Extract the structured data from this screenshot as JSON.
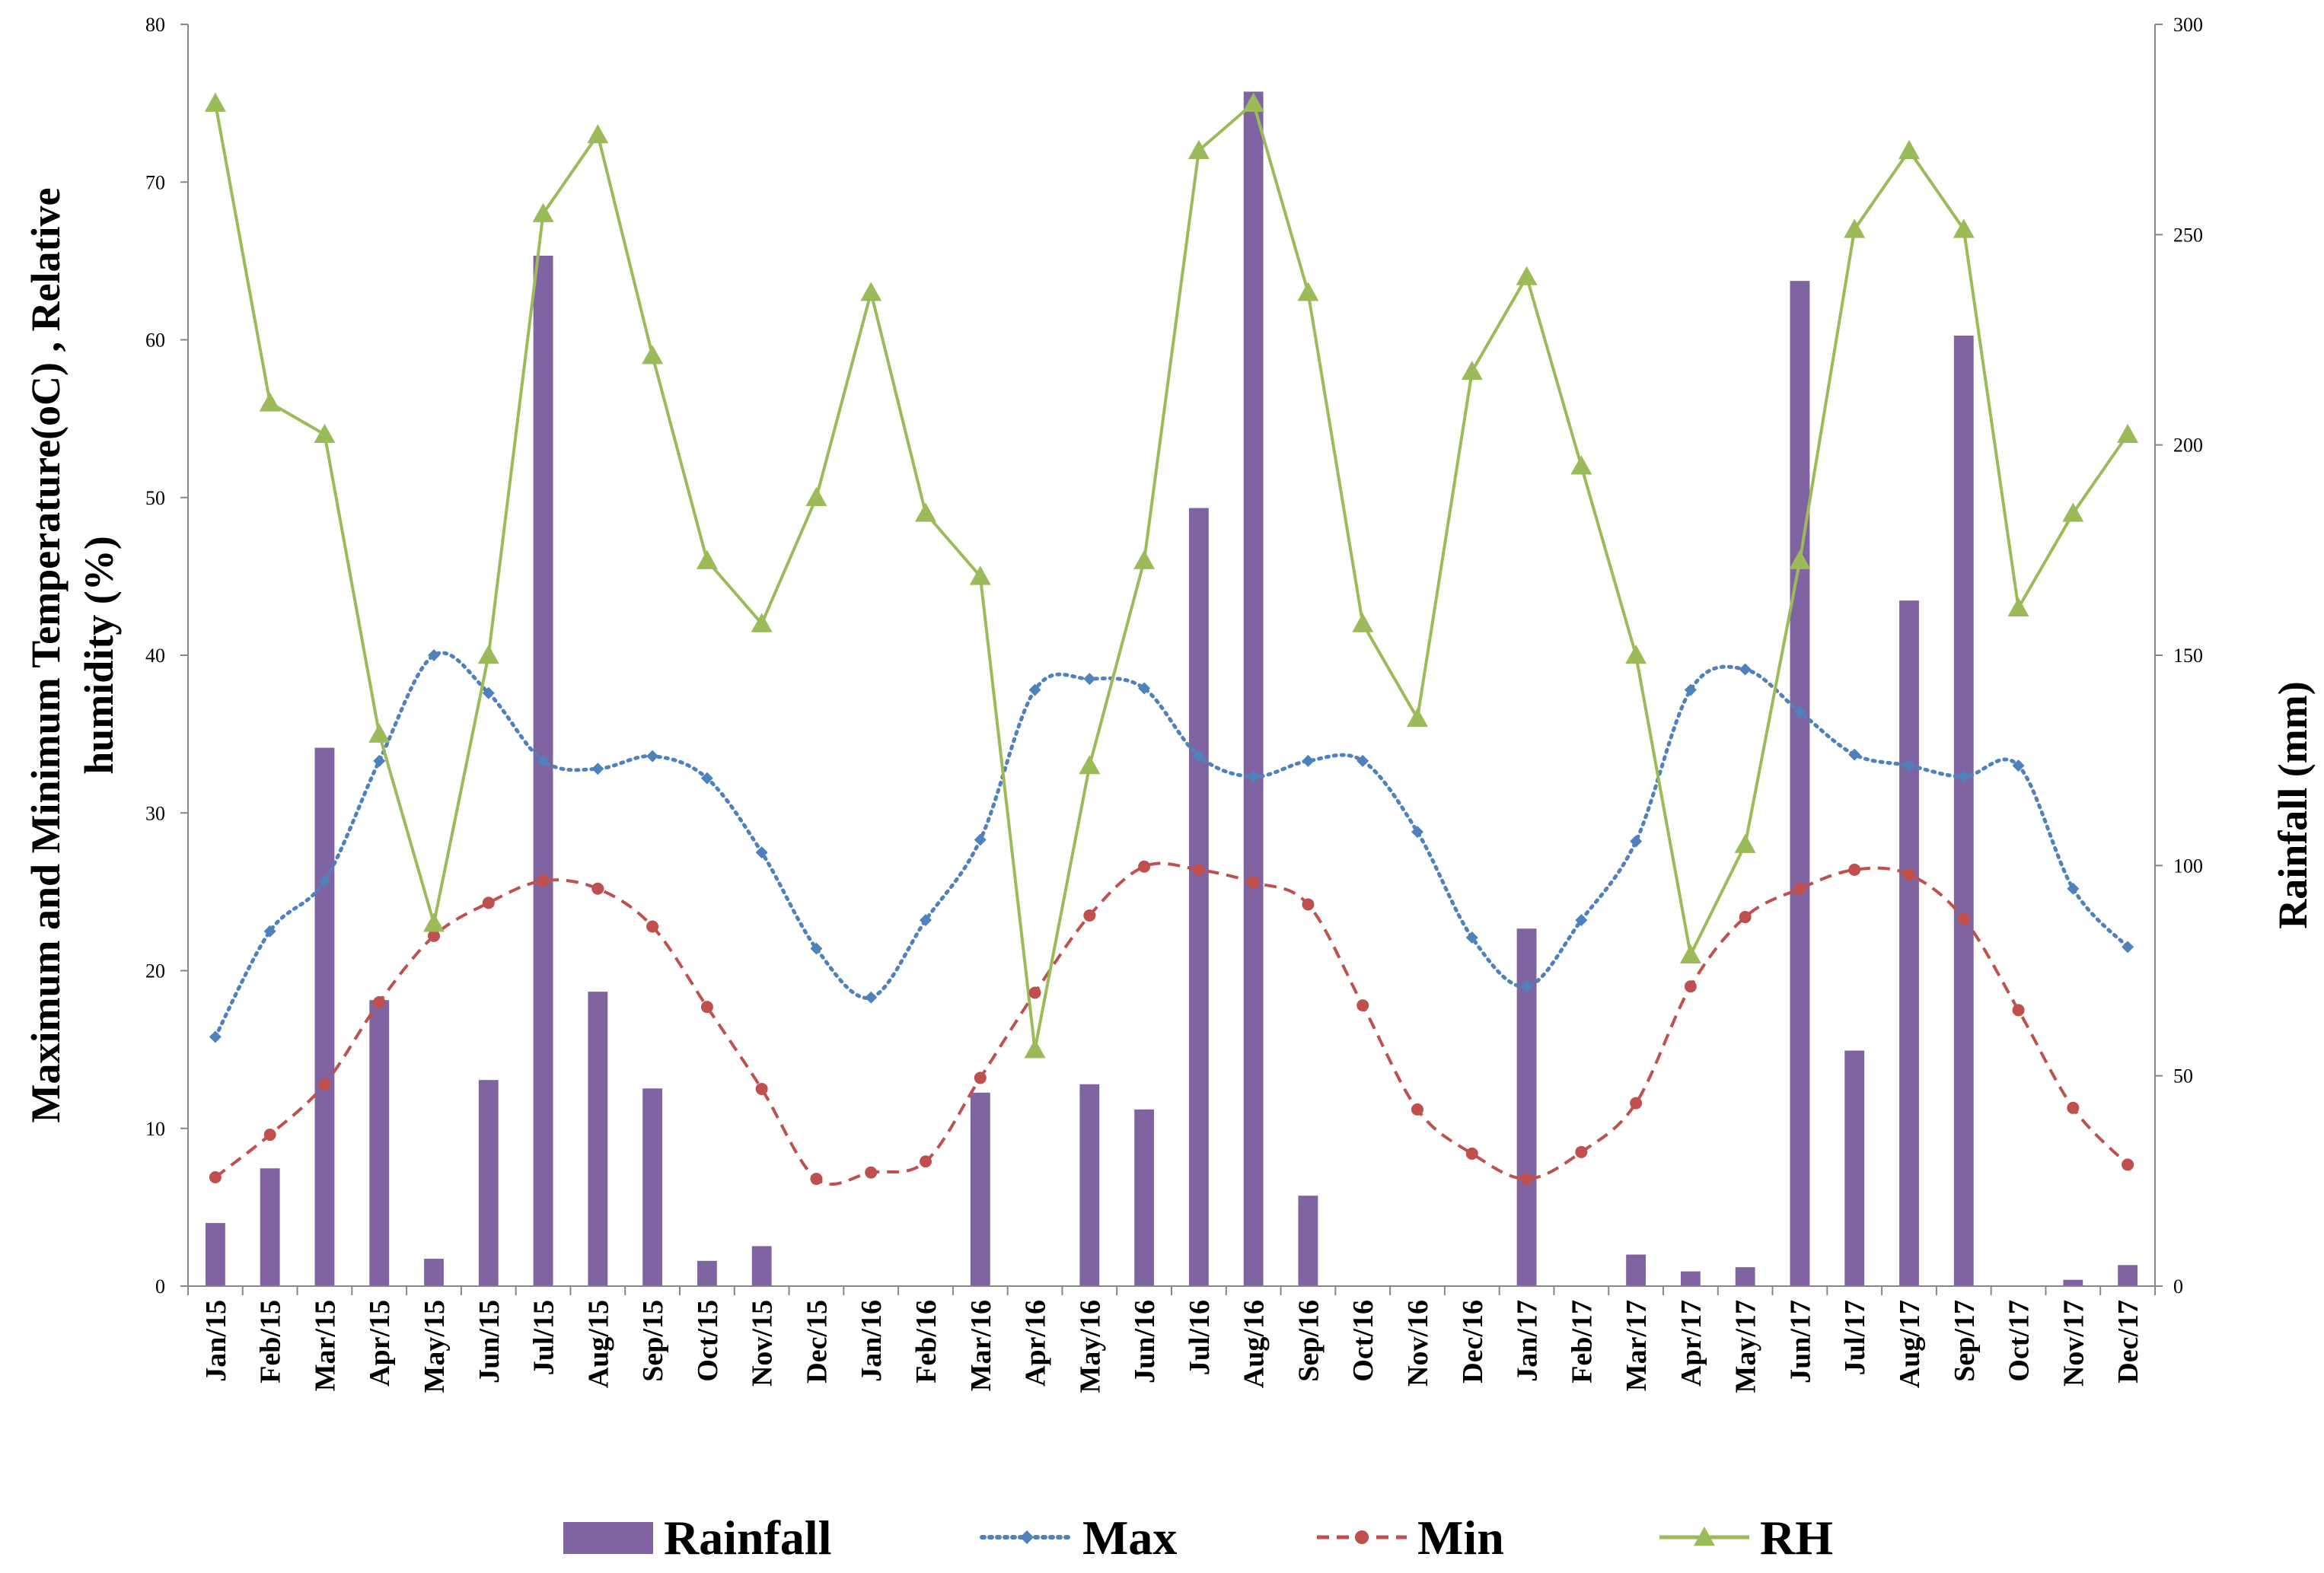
{
  "chart_data": {
    "type": "bar+line",
    "categories": [
      "Jan/15",
      "Feb/15",
      "Mar/15",
      "Apr/15",
      "May/15",
      "Jun/15",
      "Jul/15",
      "Aug/15",
      "Sep/15",
      "Oct/15",
      "Nov/15",
      "Dec/15",
      "Jan/16",
      "Feb/16",
      "Mar/16",
      "Apr/16",
      "May/16",
      "Jun/16",
      "Jul/16",
      "Aug/16",
      "Sep/16",
      "Oct/16",
      "Nov/16",
      "Dec/16",
      "Jan/17",
      "Feb/17",
      "Mar/17",
      "Apr/17",
      "May/17",
      "Jun/17",
      "Jul/17",
      "Aug/17",
      "Sep/17",
      "Oct/17",
      "Nov/17",
      "Dec/17"
    ],
    "ylabel_left": "Maximum and Minimum Temperature(oC) , Relative humidity (%)",
    "ylabel_left_lines": [
      "Maximum and Minimum Temperature(oC) , Relative",
      "humidity (%)"
    ],
    "ylabel_right": "Rainfall (mm)",
    "ylim_left": [
      0,
      80
    ],
    "yticks_left": [
      0,
      10,
      20,
      30,
      40,
      50,
      60,
      70,
      80
    ],
    "ylim_right": [
      0,
      300
    ],
    "yticks_right": [
      0,
      50,
      100,
      150,
      200,
      250,
      300
    ],
    "series": [
      {
        "name": "Rainfall",
        "type": "bar",
        "axis": "right",
        "color": "#8064A2",
        "values": [
          15,
          28,
          128,
          68,
          6.5,
          49,
          245,
          70,
          47,
          6,
          9.5,
          0,
          0,
          0,
          46,
          0,
          48,
          42,
          185,
          284,
          21.5,
          0,
          0,
          0,
          85,
          0,
          7.5,
          3.5,
          4.5,
          239,
          56,
          163,
          226,
          0,
          1.5,
          5
        ]
      },
      {
        "name": "Max",
        "type": "line",
        "style": "dotted",
        "marker": "diamond",
        "axis": "left",
        "color": "#4F81BD",
        "values": [
          15.8,
          22.5,
          25.7,
          33.3,
          40,
          37.6,
          33.3,
          32.8,
          33.6,
          32.2,
          27.5,
          21.4,
          18.3,
          23.2,
          28.3,
          37.8,
          38.5,
          37.9,
          33.6,
          32.3,
          33.3,
          33.3,
          28.8,
          22.1,
          19,
          23.2,
          28.2,
          37.8,
          39.1,
          36.4,
          33.7,
          33,
          32.3,
          33,
          25.2,
          21.5
        ]
      },
      {
        "name": "Min",
        "type": "line",
        "style": "dashed",
        "marker": "circle",
        "axis": "left",
        "color": "#C0504D",
        "values": [
          6.9,
          9.6,
          12.8,
          18,
          22.2,
          24.3,
          25.7,
          25.2,
          22.8,
          17.7,
          12.5,
          6.8,
          7.2,
          7.9,
          13.2,
          18.6,
          23.5,
          26.6,
          26.4,
          25.6,
          24.2,
          17.8,
          11.2,
          8.4,
          6.8,
          8.5,
          11.6,
          19,
          23.4,
          25.2,
          26.4,
          26.1,
          23.3,
          17.5,
          11.3,
          7.7
        ]
      },
      {
        "name": "RH",
        "type": "line",
        "style": "solid",
        "marker": "triangle",
        "axis": "left",
        "color": "#9BBB59",
        "values": [
          75,
          56,
          54,
          35,
          23,
          40,
          68,
          73,
          59,
          46,
          42,
          50,
          63,
          49,
          45,
          15,
          33,
          46,
          72,
          75,
          63,
          42,
          36,
          58,
          64,
          52,
          40,
          21,
          28,
          46,
          67,
          72,
          67,
          43,
          49,
          54
        ]
      }
    ],
    "legend": [
      "Rainfall",
      "Max",
      "Min",
      "RH"
    ],
    "legend_position": "bottom",
    "grid": false
  }
}
